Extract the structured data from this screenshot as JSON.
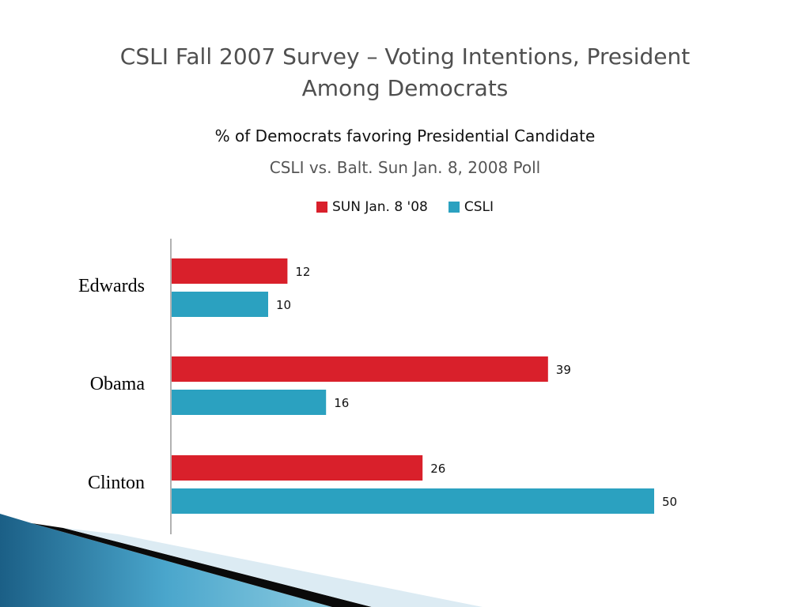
{
  "slide": {
    "title_line1": "CSLI Fall 2007 Survey – Voting Intentions, President",
    "title_line2": "Among Democrats"
  },
  "colors": {
    "sun": "#d9202b",
    "csli": "#2ba1c0"
  },
  "chart_data": {
    "type": "bar",
    "orientation": "horizontal",
    "title": "% of Democrats favoring Presidential Candidate",
    "subtitle": "CSLI vs. Balt. Sun Jan. 8, 2008 Poll",
    "categories": [
      "Edwards",
      "Obama",
      "Clinton"
    ],
    "series": [
      {
        "name": "SUN Jan. 8 '08",
        "values": [
          12,
          39,
          26
        ]
      },
      {
        "name": "CSLI",
        "values": [
          10,
          16,
          50
        ]
      }
    ],
    "xlim": [
      0,
      55
    ],
    "legend_position": "top",
    "grid": false,
    "data_labels": true
  }
}
